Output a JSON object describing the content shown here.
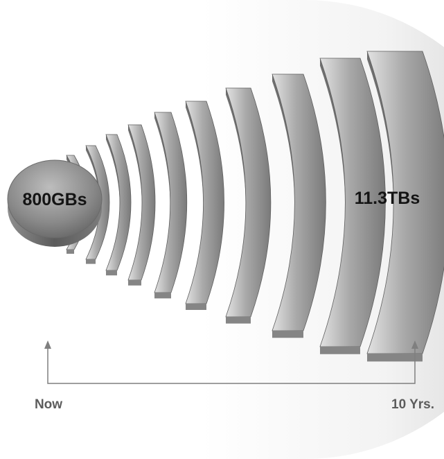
{
  "diagram": {
    "start_label": "800GBs",
    "end_label": "11.3TBs",
    "axis_start_label": "Now",
    "axis_end_label": "10 Yrs.",
    "arc_count": 10
  },
  "colors": {
    "background_glow": "#d6d6d6",
    "arc_light": "#cfcfcf",
    "arc_dark": "#6e6e6e",
    "arc_side": "#7a7a7a",
    "label_text": "#141414",
    "axis_text": "#5c5c5c",
    "axis_line": "#7f7f7f"
  }
}
